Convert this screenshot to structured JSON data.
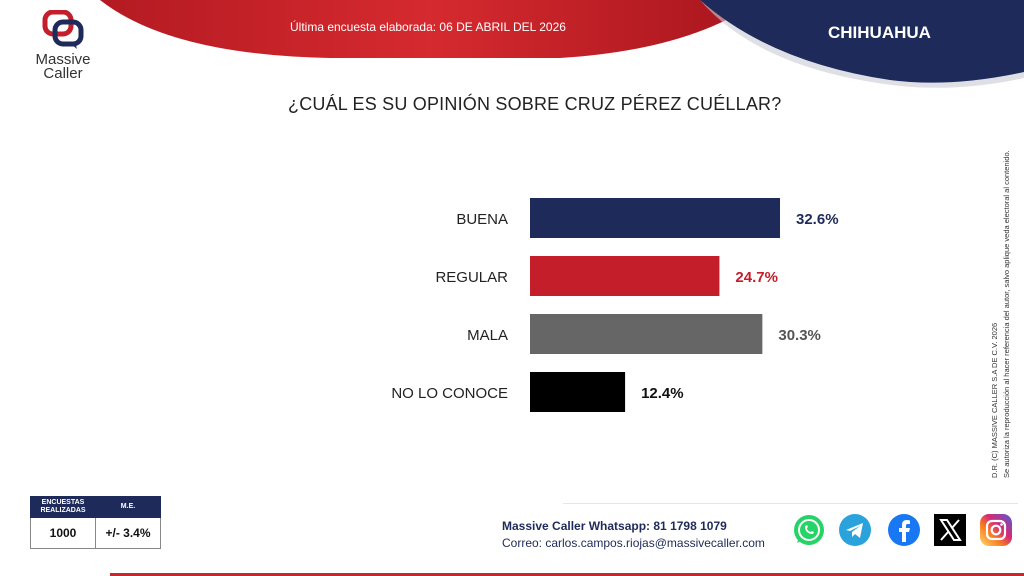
{
  "header": {
    "brand": "Massive",
    "brand2": "Caller",
    "last_survey": "Última encuesta elaborada: 06 DE ABRIL DEL 2026",
    "region": "CHIHUAHUA"
  },
  "colors": {
    "navy": "#1e2a5a",
    "red": "#c41e2a",
    "gray": "#666666",
    "black": "#000000"
  },
  "chart_data": {
    "type": "bar",
    "orientation": "horizontal",
    "title": "¿CUÁL ES SU OPINIÓN SOBRE CRUZ PÉREZ CUÉLLAR?",
    "categories": [
      "BUENA",
      "REGULAR",
      "MALA",
      "NO LO CONOCE"
    ],
    "values": [
      32.6,
      24.7,
      30.3,
      12.4
    ],
    "value_labels": [
      "32.6%",
      "24.7%",
      "30.3%",
      "12.4%"
    ],
    "bar_colors": [
      "#1e2a5a",
      "#c41e2a",
      "#666666",
      "#000000"
    ],
    "label_colors": [
      "#1e2a5a",
      "#c41e2a",
      "#555555",
      "#111111"
    ],
    "grid": false
  },
  "copyright": {
    "line1": "D.R. (C) MASSIVE CALLER S.A DE C.V. 2026",
    "line2": "Se autoriza la reproducción al hacer referencia del autor, salvo aplique veda electoral al contenido."
  },
  "stats": {
    "col1_header": "ENCUESTAS REALIZADAS",
    "col2_header": "M.E.",
    "surveys": "1000",
    "margin": "+/- 3.4%"
  },
  "contact": {
    "whatsapp": "Massive Caller Whatsapp: 81 1798 1079",
    "email": "Correo: carlos.campos.riojas@massivecaller.com"
  },
  "social_icons": [
    "whatsapp-icon",
    "telegram-icon",
    "facebook-icon",
    "x-icon",
    "instagram-icon"
  ]
}
